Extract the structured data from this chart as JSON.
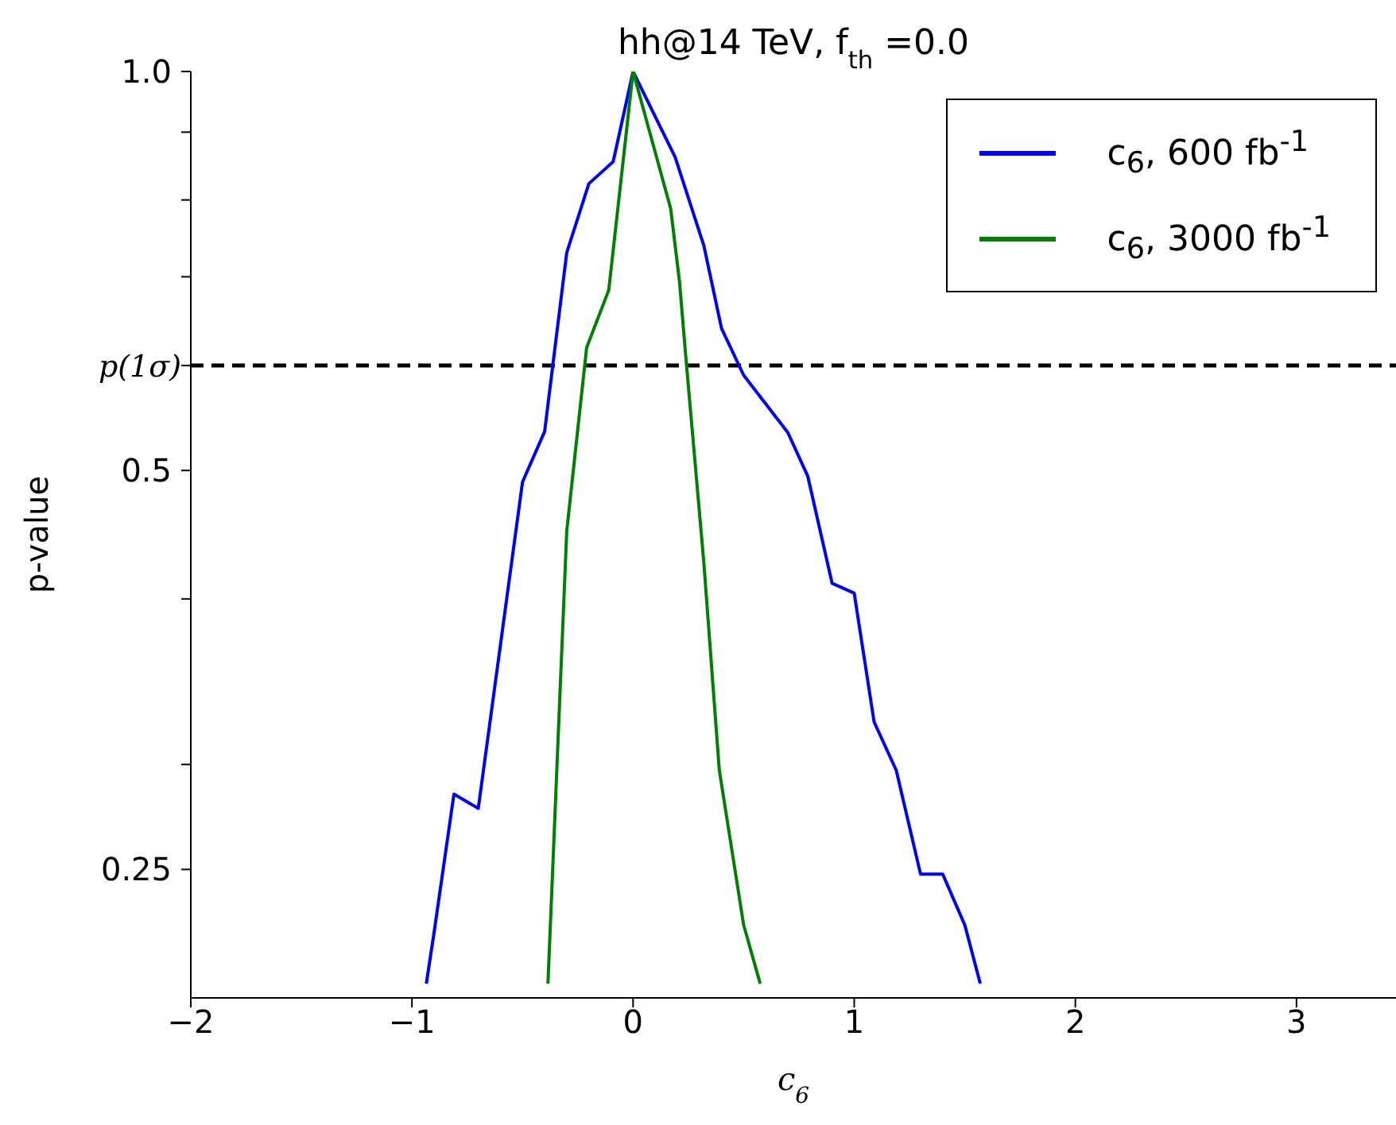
{
  "chart_data": {
    "type": "line",
    "title": "hh@14 TeV, f$_{th}$ =0.0",
    "xlabel": "c$_{6}$",
    "ylabel": "p-value",
    "log": "y",
    "legend": "top right",
    "xlim": [
      -2,
      3.45
    ],
    "xticks": [
      {
        "value": -2,
        "label": "−2"
      },
      {
        "value": -1,
        "label": "−1"
      },
      0,
      1,
      2,
      3
    ],
    "ylim": [
      0.2,
      1.0
    ],
    "yticks": [
      {
        "value": 1.0,
        "label": "1.0"
      },
      {
        "value": 0.9,
        "label": null
      },
      {
        "value": 0.8,
        "label": null
      },
      {
        "value": 0.7,
        "label": null
      },
      {
        "value": 0.6,
        "label": null
      },
      0.5,
      {
        "value": 0.4,
        "label": null
      },
      {
        "value": 0.3,
        "label": null
      },
      0.25
    ],
    "ref_lines": [
      {
        "axis": "y",
        "value": 0.6,
        "label": "p(1σ)",
        "color": "#000000",
        "line_style": "dashed"
      }
    ],
    "series": [
      {
        "name": "c$_{6}$, 600 fb$^{-1}$",
        "color": "#0000ff",
        "x": [
          -0.935,
          -0.9,
          -0.81,
          -0.7,
          -0.5,
          -0.4,
          -0.3,
          -0.2,
          -0.09,
          0,
          0.19,
          0.32,
          0.4,
          0.5,
          0.7,
          0.79,
          0.9,
          1.0,
          1.09,
          1.19,
          1.3,
          1.4,
          1.5,
          1.57
        ],
        "values": [
          0.205,
          0.224,
          0.285,
          0.278,
          0.49,
          0.535,
          0.73,
          0.823,
          0.855,
          1.0,
          0.862,
          0.739,
          0.64,
          0.59,
          0.534,
          0.495,
          0.411,
          0.404,
          0.323,
          0.297,
          0.248,
          0.248,
          0.227,
          0.205
        ]
      },
      {
        "name": "c$_{6}$, 3000 fb$^{-1}$",
        "color": "#008000",
        "x": [
          -0.385,
          -0.3,
          -0.21,
          -0.11,
          0,
          0.17,
          0.21,
          0.24,
          0.32,
          0.39,
          0.5,
          0.575
        ],
        "values": [
          0.205,
          0.45,
          0.619,
          0.684,
          1.0,
          0.788,
          0.694,
          0.605,
          0.426,
          0.297,
          0.227,
          0.205
        ]
      }
    ]
  }
}
